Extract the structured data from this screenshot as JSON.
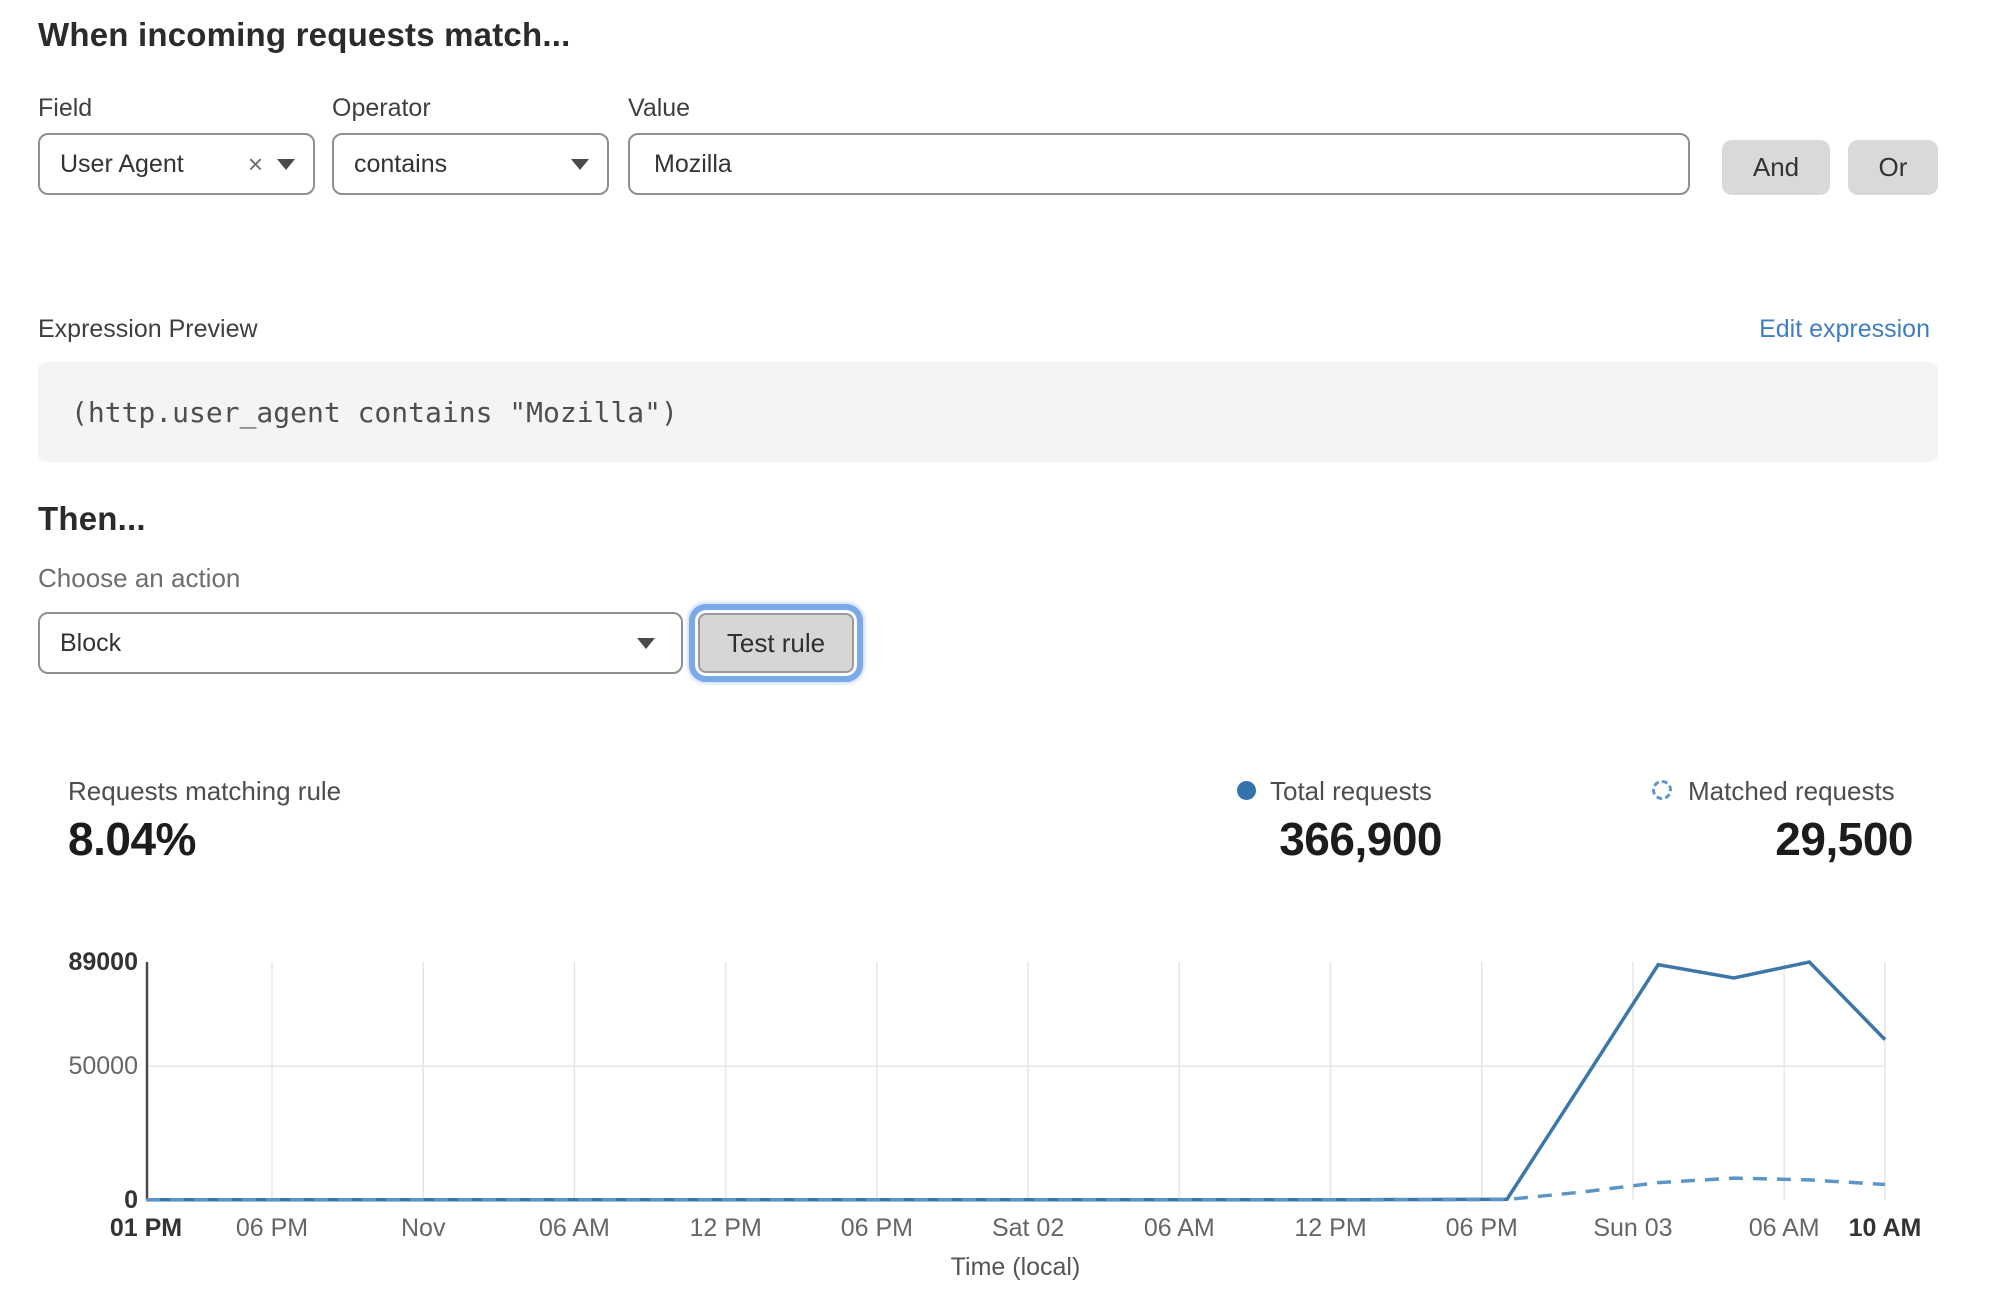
{
  "rule_builder": {
    "heading": "When incoming requests match...",
    "field": {
      "label": "Field",
      "selected": "User Agent",
      "clear_icon": "×"
    },
    "operator": {
      "label": "Operator",
      "selected": "contains"
    },
    "value": {
      "label": "Value",
      "value": "Mozilla"
    },
    "and_label": "And",
    "or_label": "Or"
  },
  "expression": {
    "label": "Expression Preview",
    "edit_link": "Edit expression",
    "code": "(http.user_agent contains \"Mozilla\")"
  },
  "then_section": {
    "heading": "Then...",
    "action_label": "Choose an action",
    "action_selected": "Block",
    "test_button": "Test rule"
  },
  "stats": {
    "matching": {
      "label": "Requests matching rule",
      "value": "8.04%"
    },
    "total": {
      "label": "Total requests",
      "value": "366,900"
    },
    "matched": {
      "label": "Matched requests",
      "value": "29,500"
    }
  },
  "colors": {
    "accent_link": "#3f7fc1",
    "total_line": "#3d76a9",
    "matched_line": "#5e95c8",
    "legend_dot": "#3673ac",
    "gridline": "#e6e6e6",
    "axis": "#4a4a4a",
    "focus_ring": "#7ba8e8"
  },
  "chart_data": {
    "type": "line",
    "title": "",
    "xlabel": "Time (local)",
    "ylabel": "",
    "ylim": [
      0,
      89000
    ],
    "hours_total": 69,
    "grid": {
      "h_gridlines": [
        50000
      ],
      "v_gridlines": "at each x tick"
    },
    "legend_position": "top-right stats row (dot = Total requests, dashed circle = Matched requests)",
    "yticks": [
      {
        "value": 89000,
        "label": "89000",
        "bold": true
      },
      {
        "value": 50000,
        "label": "50000",
        "bold": false
      },
      {
        "value": 0,
        "label": "0",
        "bold": true
      }
    ],
    "xticks": [
      {
        "h": 0,
        "label": "01 PM",
        "bold": true
      },
      {
        "h": 5,
        "label": "06 PM",
        "bold": false
      },
      {
        "h": 11,
        "label": "Nov",
        "bold": false
      },
      {
        "h": 17,
        "label": "06 AM",
        "bold": false
      },
      {
        "h": 23,
        "label": "12 PM",
        "bold": false
      },
      {
        "h": 29,
        "label": "06 PM",
        "bold": false
      },
      {
        "h": 35,
        "label": "Sat 02",
        "bold": false
      },
      {
        "h": 41,
        "label": "06 AM",
        "bold": false
      },
      {
        "h": 47,
        "label": "12 PM",
        "bold": false
      },
      {
        "h": 53,
        "label": "06 PM",
        "bold": false
      },
      {
        "h": 59,
        "label": "Sun 03",
        "bold": false
      },
      {
        "h": 65,
        "label": "06 AM",
        "bold": false
      },
      {
        "h": 69,
        "label": "10 AM",
        "bold": true
      }
    ],
    "series": [
      {
        "name": "Total requests",
        "style": "solid",
        "color": "#3d76a9",
        "points": [
          [
            0,
            100
          ],
          [
            6,
            100
          ],
          [
            12,
            100
          ],
          [
            18,
            100
          ],
          [
            24,
            100
          ],
          [
            30,
            100
          ],
          [
            36,
            100
          ],
          [
            42,
            100
          ],
          [
            48,
            100
          ],
          [
            54,
            300
          ],
          [
            57,
            44000
          ],
          [
            60,
            88000
          ],
          [
            63,
            83000
          ],
          [
            66,
            89000
          ],
          [
            69,
            60000
          ]
        ]
      },
      {
        "name": "Matched requests",
        "style": "dashed",
        "color": "#5e95c8",
        "points": [
          [
            0,
            50
          ],
          [
            6,
            50
          ],
          [
            12,
            50
          ],
          [
            18,
            50
          ],
          [
            24,
            50
          ],
          [
            30,
            50
          ],
          [
            36,
            50
          ],
          [
            42,
            50
          ],
          [
            48,
            50
          ],
          [
            54,
            200
          ],
          [
            57,
            3000
          ],
          [
            60,
            6500
          ],
          [
            63,
            8200
          ],
          [
            66,
            7500
          ],
          [
            69,
            5800
          ]
        ]
      }
    ]
  }
}
